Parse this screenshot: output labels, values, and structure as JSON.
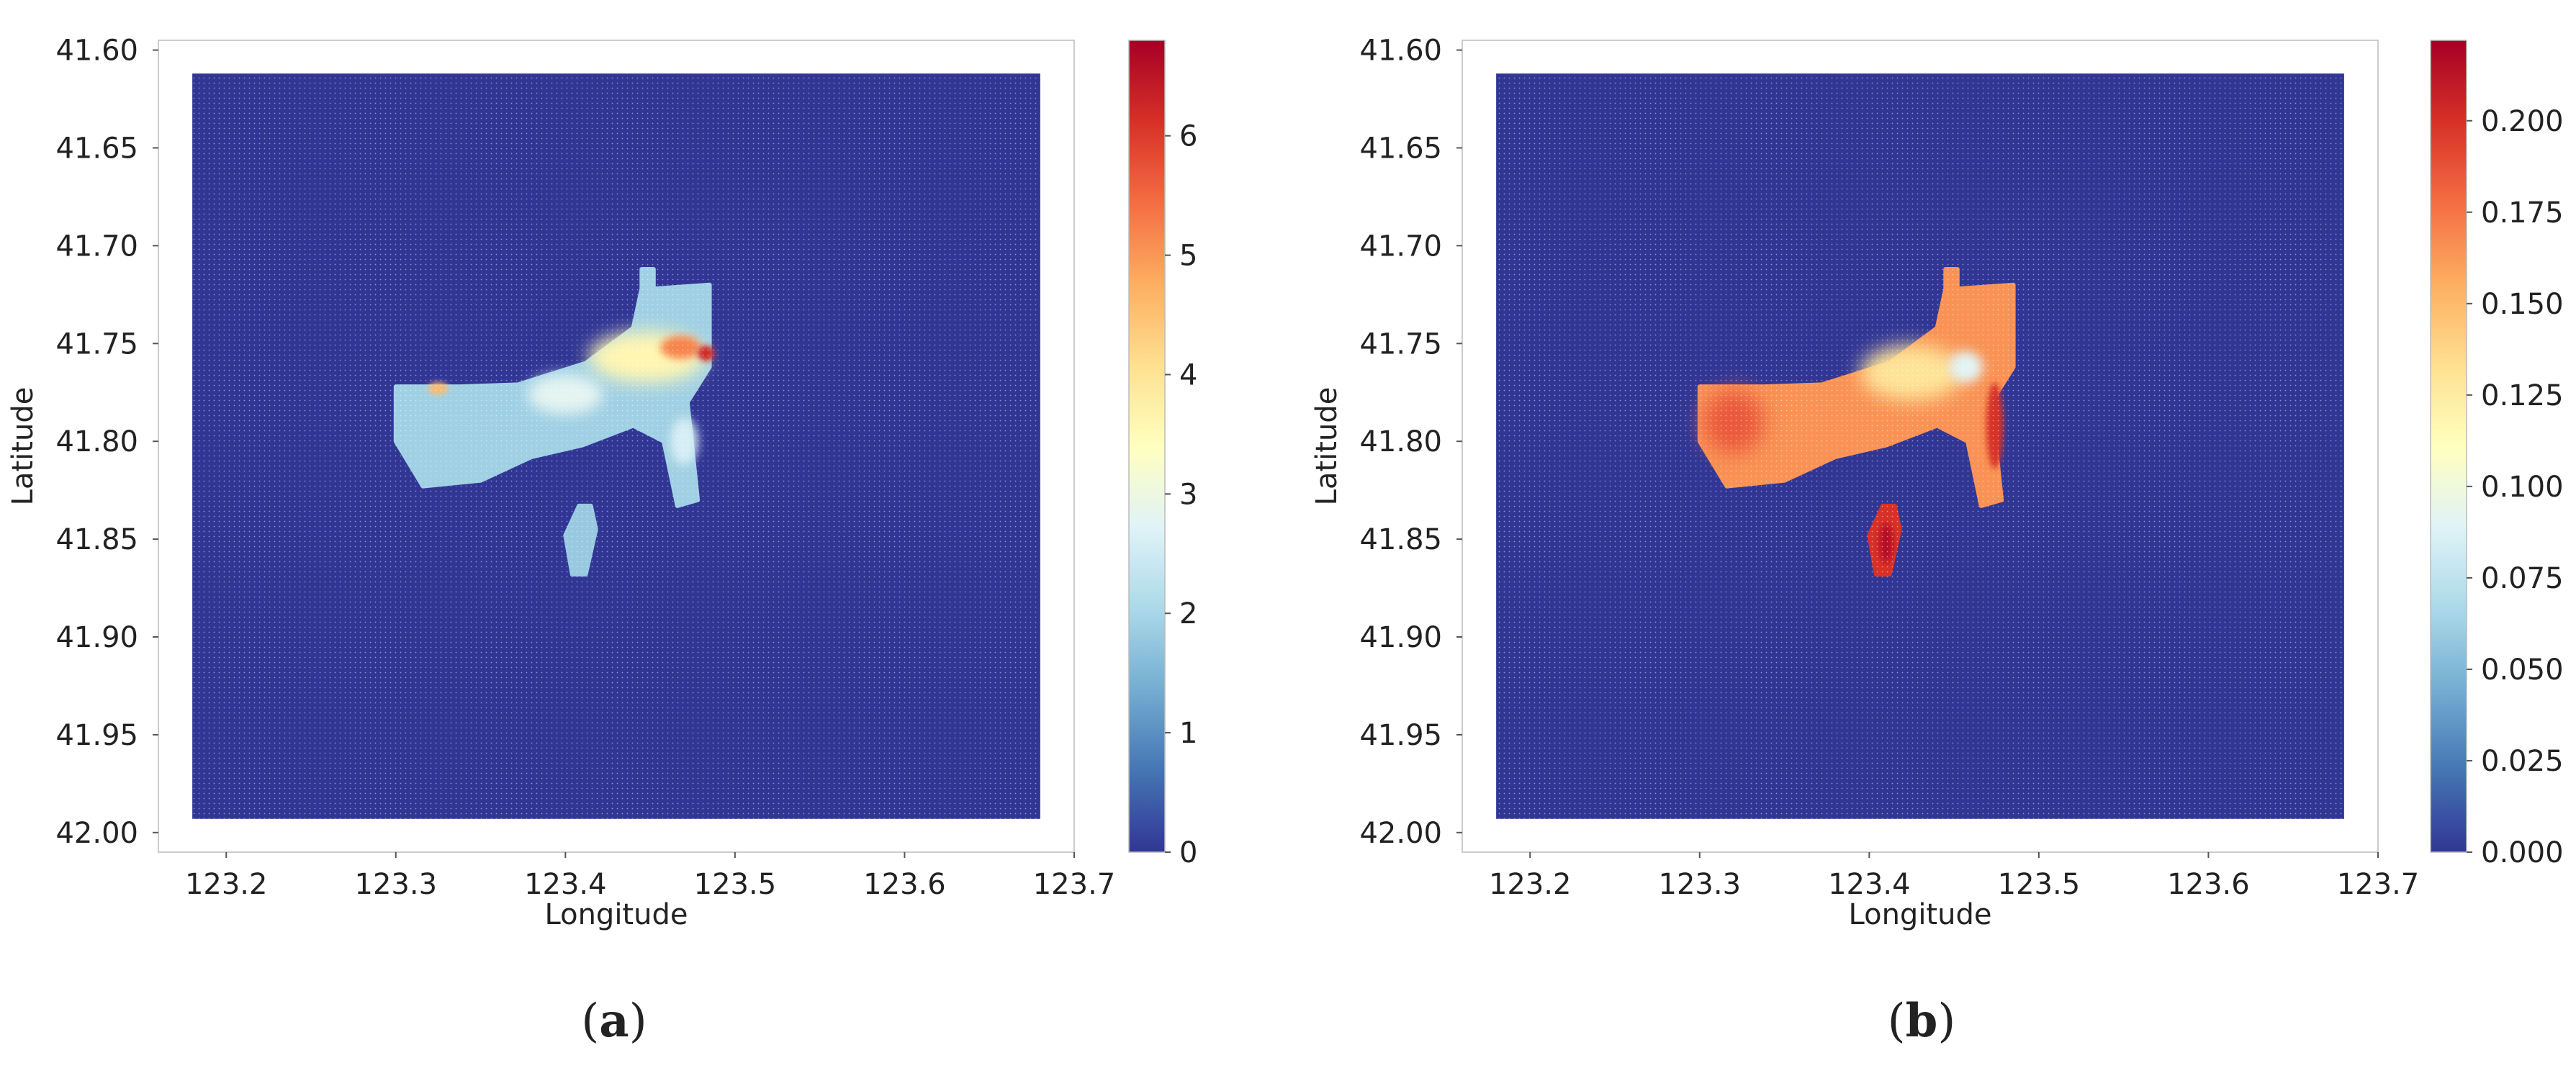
{
  "chart_data": [
    {
      "type": "heatmap",
      "panel_label": "a",
      "xlabel": "Longitude",
      "ylabel": "Latitude",
      "xlim": [
        123.16,
        123.7
      ],
      "ylim": [
        42.01,
        41.595
      ],
      "x_ticks": [
        123.2,
        123.3,
        123.4,
        123.5,
        123.6,
        123.7
      ],
      "x_tick_labels": [
        "123.2",
        "123.3",
        "123.4",
        "123.5",
        "123.6",
        "123.7"
      ],
      "y_ticks": [
        41.6,
        41.65,
        41.7,
        41.75,
        41.8,
        41.85,
        41.9,
        41.95,
        42.0
      ],
      "y_tick_labels": [
        "41.60",
        "41.65",
        "41.70",
        "41.75",
        "41.80",
        "41.85",
        "41.90",
        "41.95",
        "42.00"
      ],
      "grid_extent": {
        "lon": [
          123.18,
          123.68
        ],
        "lat": [
          41.612,
          41.993
        ]
      },
      "colorbar": {
        "min": 0,
        "max": 6.8,
        "ticks": [
          0,
          1,
          2,
          3,
          4,
          5,
          6
        ],
        "tick_labels": [
          "0",
          "1",
          "2",
          "3",
          "4",
          "5",
          "6"
        ],
        "colormap": "RdYlBu_r"
      },
      "background_value": 0,
      "regions": [
        {
          "shape": "polygon",
          "value": 1.9,
          "points": [
            [
              123.445,
              41.712
            ],
            [
              123.452,
              41.712
            ],
            [
              123.452,
              41.722
            ],
            [
              123.485,
              41.72
            ],
            [
              123.485,
              41.762
            ],
            [
              123.472,
              41.78
            ],
            [
              123.478,
              41.83
            ],
            [
              123.466,
              41.833
            ],
            [
              123.458,
              41.8
            ],
            [
              123.44,
              41.792
            ],
            [
              123.41,
              41.802
            ],
            [
              123.38,
              41.808
            ],
            [
              123.35,
              41.82
            ],
            [
              123.316,
              41.823
            ],
            [
              123.3,
              41.8
            ],
            [
              123.3,
              41.772
            ],
            [
              123.338,
              41.772
            ],
            [
              123.372,
              41.771
            ],
            [
              123.412,
              41.76
            ],
            [
              123.44,
              41.742
            ],
            [
              123.445,
              41.722
            ]
          ]
        },
        {
          "shape": "polygon",
          "value": 1.8,
          "points": [
            [
              123.408,
              41.833
            ],
            [
              123.415,
              41.833
            ],
            [
              123.418,
              41.845
            ],
            [
              123.412,
              41.868
            ],
            [
              123.404,
              41.868
            ],
            [
              123.4,
              41.848
            ]
          ]
        },
        {
          "shape": "ellipse",
          "value": 3.6,
          "center": [
            123.448,
            41.757
          ],
          "radius": [
            0.034,
            0.013
          ]
        },
        {
          "shape": "ellipse",
          "value": 2.8,
          "center": [
            123.4,
            41.776
          ],
          "radius": [
            0.022,
            0.01
          ]
        },
        {
          "shape": "ellipse",
          "value": 5.2,
          "center": [
            123.468,
            41.752
          ],
          "radius": [
            0.012,
            0.006
          ]
        },
        {
          "shape": "ellipse",
          "value": 6.2,
          "center": [
            123.483,
            41.755
          ],
          "radius": [
            0.005,
            0.004
          ]
        },
        {
          "shape": "ellipse",
          "value": 4.6,
          "center": [
            123.325,
            41.773
          ],
          "radius": [
            0.006,
            0.003
          ]
        },
        {
          "shape": "ellipse",
          "value": 2.6,
          "center": [
            123.47,
            41.8
          ],
          "radius": [
            0.008,
            0.012
          ]
        }
      ]
    },
    {
      "type": "heatmap",
      "panel_label": "b",
      "xlabel": "Longitude",
      "ylabel": "Latitude",
      "xlim": [
        123.16,
        123.7
      ],
      "ylim": [
        42.01,
        41.595
      ],
      "x_ticks": [
        123.2,
        123.3,
        123.4,
        123.5,
        123.6,
        123.7
      ],
      "x_tick_labels": [
        "123.2",
        "123.3",
        "123.4",
        "123.5",
        "123.6",
        "123.7"
      ],
      "y_ticks": [
        41.6,
        41.65,
        41.7,
        41.75,
        41.8,
        41.85,
        41.9,
        41.95,
        42.0
      ],
      "y_tick_labels": [
        "41.60",
        "41.65",
        "41.70",
        "41.75",
        "41.80",
        "41.85",
        "41.90",
        "41.95",
        "42.00"
      ],
      "grid_extent": {
        "lon": [
          123.18,
          123.68
        ],
        "lat": [
          41.612,
          41.993
        ]
      },
      "colorbar": {
        "min": 0,
        "max": 0.222,
        "ticks": [
          0.0,
          0.025,
          0.05,
          0.075,
          0.1,
          0.125,
          0.15,
          0.175,
          0.2
        ],
        "tick_labels": [
          "0.000",
          "0.025",
          "0.050",
          "0.075",
          "0.100",
          "0.125",
          "0.150",
          "0.175",
          "0.200"
        ],
        "colormap": "RdYlBu_r"
      },
      "background_value": 0,
      "regions": [
        {
          "shape": "polygon",
          "value": 0.165,
          "points": [
            [
              123.445,
              41.712
            ],
            [
              123.452,
              41.712
            ],
            [
              123.452,
              41.722
            ],
            [
              123.485,
              41.72
            ],
            [
              123.485,
              41.762
            ],
            [
              123.472,
              41.78
            ],
            [
              123.478,
              41.83
            ],
            [
              123.466,
              41.833
            ],
            [
              123.458,
              41.8
            ],
            [
              123.44,
              41.792
            ],
            [
              123.41,
              41.802
            ],
            [
              123.38,
              41.808
            ],
            [
              123.35,
              41.82
            ],
            [
              123.316,
              41.823
            ],
            [
              123.3,
              41.8
            ],
            [
              123.3,
              41.772
            ],
            [
              123.338,
              41.772
            ],
            [
              123.372,
              41.771
            ],
            [
              123.412,
              41.76
            ],
            [
              123.44,
              41.742
            ],
            [
              123.445,
              41.722
            ]
          ]
        },
        {
          "shape": "polygon",
          "value": 0.2,
          "points": [
            [
              123.408,
              41.833
            ],
            [
              123.415,
              41.833
            ],
            [
              123.418,
              41.845
            ],
            [
              123.412,
              41.868
            ],
            [
              123.404,
              41.868
            ],
            [
              123.4,
              41.848
            ]
          ]
        },
        {
          "shape": "ellipse",
          "value": 0.185,
          "center": [
            123.32,
            41.79
          ],
          "radius": [
            0.018,
            0.016
          ]
        },
        {
          "shape": "ellipse",
          "value": 0.13,
          "center": [
            123.425,
            41.765
          ],
          "radius": [
            0.03,
            0.014
          ]
        },
        {
          "shape": "ellipse",
          "value": 0.09,
          "center": [
            123.457,
            41.762
          ],
          "radius": [
            0.01,
            0.008
          ]
        },
        {
          "shape": "ellipse",
          "value": 0.2,
          "center": [
            123.474,
            41.792
          ],
          "radius": [
            0.005,
            0.022
          ]
        },
        {
          "shape": "ellipse",
          "value": 0.215,
          "center": [
            123.41,
            41.852
          ],
          "radius": [
            0.004,
            0.01
          ]
        }
      ]
    }
  ]
}
